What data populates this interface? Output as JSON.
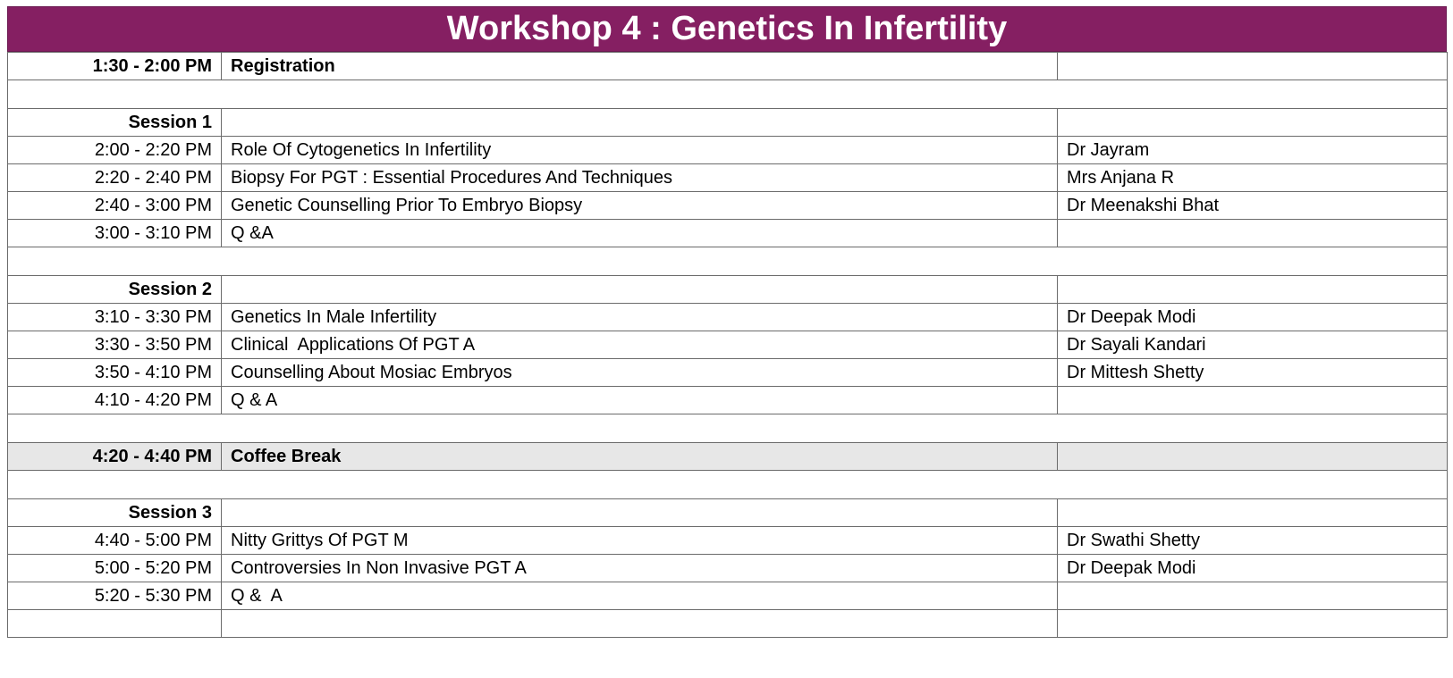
{
  "title": "Workshop 4 : Genetics In Infertility",
  "colors": {
    "title_bg": "#851f62",
    "title_text": "#ffffff",
    "shaded_row": "#e7e7e7",
    "grid": "#6b6b6b"
  },
  "rows": [
    {
      "type": "item",
      "bold": true,
      "time": "1:30 - 2:00 PM",
      "topic": "Registration",
      "speaker": ""
    },
    {
      "type": "spacer"
    },
    {
      "type": "item",
      "bold": true,
      "time": "Session 1",
      "topic": "",
      "speaker": ""
    },
    {
      "type": "item",
      "time": "2:00 - 2:20 PM",
      "topic": "Role Of Cytogenetics In Infertility",
      "speaker": "Dr Jayram"
    },
    {
      "type": "item",
      "time": "2:20 - 2:40 PM",
      "topic": "Biopsy For PGT : Essential Procedures And Techniques",
      "speaker": "Mrs Anjana R"
    },
    {
      "type": "item",
      "time": "2:40 - 3:00 PM",
      "topic": "Genetic Counselling Prior To Embryo Biopsy",
      "speaker": "Dr Meenakshi Bhat"
    },
    {
      "type": "item",
      "time": "3:00 - 3:10 PM",
      "topic": "Q &A",
      "speaker": ""
    },
    {
      "type": "spacer"
    },
    {
      "type": "item",
      "bold": true,
      "time": "Session 2",
      "topic": "",
      "speaker": ""
    },
    {
      "type": "item",
      "time": "3:10 - 3:30 PM",
      "topic": "Genetics In Male Infertility",
      "speaker": "Dr Deepak Modi"
    },
    {
      "type": "item",
      "time": "3:30 - 3:50 PM",
      "topic": "Clinical  Applications Of PGT A",
      "speaker": "Dr Sayali Kandari"
    },
    {
      "type": "item",
      "time": "3:50 - 4:10 PM",
      "topic": "Counselling About Mosiac Embryos",
      "speaker": "Dr Mittesh Shetty"
    },
    {
      "type": "item",
      "time": "4:10 - 4:20 PM",
      "topic": "Q & A",
      "speaker": ""
    },
    {
      "type": "spacer"
    },
    {
      "type": "item",
      "bold": true,
      "shaded": true,
      "time": "4:20 - 4:40 PM",
      "topic": "Coffee Break",
      "speaker": ""
    },
    {
      "type": "spacer"
    },
    {
      "type": "item",
      "bold": true,
      "time": "Session 3",
      "topic": "",
      "speaker": ""
    },
    {
      "type": "item",
      "time": "4:40 - 5:00 PM",
      "topic": "Nitty Grittys Of PGT M",
      "speaker": "Dr Swathi Shetty"
    },
    {
      "type": "item",
      "time": "5:00 - 5:20 PM",
      "topic": "Controversies In Non Invasive PGT A",
      "speaker": "Dr Deepak Modi"
    },
    {
      "type": "item",
      "time": "5:20 - 5:30 PM",
      "topic": "Q &  A",
      "speaker": ""
    },
    {
      "type": "item",
      "time": "",
      "topic": "",
      "speaker": ""
    }
  ]
}
